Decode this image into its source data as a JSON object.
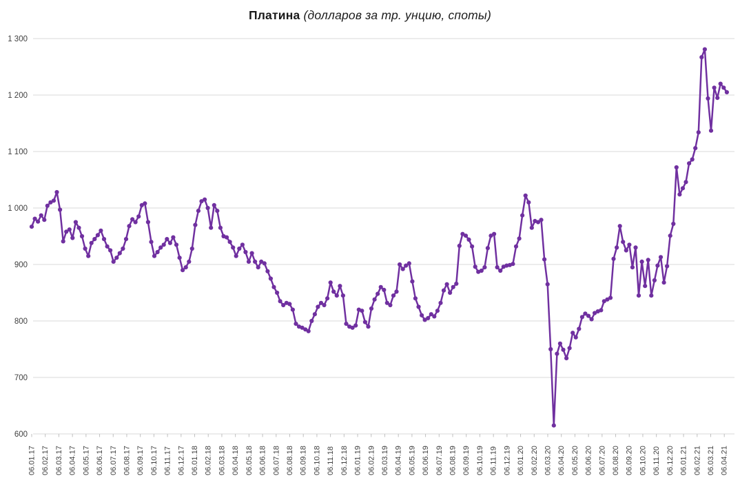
{
  "title": {
    "main": "Платина",
    "subtitle": "(долларов за тр. унцию, споты)"
  },
  "chart_data": {
    "type": "line",
    "title": "Платина (долларов за тр. унцию, споты)",
    "legend": "none",
    "grid": "horizontal",
    "marker": "circle",
    "x_frequency": "weekly",
    "x_range": [
      "06.01.17",
      "06.04.21"
    ],
    "ylim": [
      600,
      1300
    ],
    "ytick_step": 100,
    "ytick_labels": [
      "600",
      "700",
      "800",
      "900",
      "1 000",
      "1 100",
      "1 200",
      "1 300"
    ],
    "x_tick_labels": [
      "06.01.17",
      "06.02.17",
      "06.03.17",
      "06.04.17",
      "06.05.17",
      "06.06.17",
      "06.07.17",
      "06.08.17",
      "06.09.17",
      "06.10.17",
      "06.11.17",
      "06.12.17",
      "06.01.18",
      "06.02.18",
      "06.03.18",
      "06.04.18",
      "06.05.18",
      "06.06.18",
      "06.07.18",
      "06.08.18",
      "06.09.18",
      "06.10.18",
      "06.11.18",
      "06.12.18",
      "06.01.19",
      "06.02.19",
      "06.03.19",
      "06.04.19",
      "06.05.19",
      "06.06.19",
      "06.07.19",
      "06.08.19",
      "06.09.19",
      "06.10.19",
      "06.11.19",
      "06.12.19",
      "06.01.20",
      "06.02.20",
      "06.03.20",
      "06.04.20",
      "06.05.20",
      "06.06.20",
      "06.07.20",
      "06.08.20",
      "06.09.20",
      "06.10.20",
      "06.11.20",
      "06.12.20",
      "06.01.21",
      "06.02.21",
      "06.03.21",
      "06.04.21"
    ],
    "series": [
      {
        "name": "Платина, споты (долларов за тр. унцию)",
        "color": "#7030A0",
        "values": [
          967,
          981,
          976,
          987,
          979,
          1004,
          1010,
          1013,
          1028,
          997,
          941,
          958,
          962,
          947,
          975,
          965,
          950,
          928,
          915,
          938,
          945,
          952,
          960,
          945,
          932,
          925,
          905,
          912,
          920,
          928,
          945,
          968,
          980,
          975,
          985,
          1005,
          1008,
          975,
          940,
          915,
          922,
          930,
          935,
          945,
          938,
          948,
          935,
          912,
          890,
          895,
          905,
          928,
          970,
          995,
          1012,
          1015,
          1000,
          965,
          1005,
          995,
          965,
          950,
          948,
          940,
          930,
          915,
          928,
          935,
          922,
          905,
          920,
          905,
          895,
          905,
          902,
          888,
          875,
          860,
          850,
          835,
          828,
          832,
          830,
          820,
          795,
          790,
          788,
          785,
          782,
          800,
          812,
          825,
          832,
          828,
          840,
          868,
          852,
          845,
          862,
          845,
          795,
          790,
          788,
          792,
          820,
          818,
          798,
          790,
          822,
          838,
          848,
          860,
          855,
          832,
          828,
          845,
          852,
          900,
          892,
          898,
          902,
          870,
          840,
          825,
          810,
          802,
          805,
          812,
          808,
          818,
          832,
          854,
          865,
          850,
          860,
          866,
          933,
          954,
          951,
          944,
          932,
          896,
          887,
          889,
          895,
          929,
          951,
          954,
          895,
          889,
          896,
          898,
          899,
          901,
          932,
          946,
          987,
          1022,
          1010,
          965,
          977,
          975,
          979,
          909,
          865,
          750,
          615,
          742,
          760,
          749,
          734,
          752,
          779,
          771,
          786,
          807,
          813,
          809,
          803,
          814,
          817,
          819,
          835,
          838,
          841,
          910,
          930,
          968,
          940,
          925,
          935,
          895,
          930,
          845,
          905,
          862,
          908,
          845,
          872,
          898,
          913,
          868,
          897,
          951,
          972,
          1072,
          1024,
          1035,
          1046,
          1079,
          1086,
          1106,
          1134,
          1267,
          1281,
          1194,
          1137,
          1213,
          1195,
          1220,
          1213,
          1205
        ]
      }
    ],
    "colors": {
      "line": "#7030A0",
      "grid": "#D9D9D9",
      "tick": "#BFBFBF",
      "axis_text": "#404040",
      "title_text": "#1a1a1a"
    }
  }
}
